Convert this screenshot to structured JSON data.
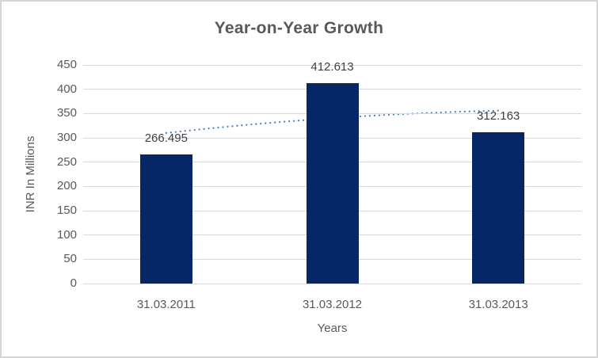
{
  "chart_data": {
    "type": "bar",
    "title": "Year-on-Year Growth",
    "xlabel": "Years",
    "ylabel": "INR In Millions",
    "categories": [
      "31.03.2011",
      "31.03.2012",
      "31.03.2013"
    ],
    "values": [
      266.495,
      412.613,
      312.163
    ],
    "data_labels": [
      "266.495",
      "412.613",
      "312.163"
    ],
    "ylim": [
      0,
      450
    ],
    "ytick_step": 50,
    "yticks": [
      0,
      50,
      100,
      150,
      200,
      250,
      300,
      350,
      400,
      450
    ],
    "grid": true,
    "legend": "none",
    "bar_color": "#062666",
    "trendline": {
      "type": "logarithmic",
      "style": "dotted",
      "color": "#4a7ec9",
      "fit_values": [
        310,
        340.5,
        356
      ]
    },
    "colors": {
      "background": "#ffffff",
      "border": "#d6d6d6",
      "gridline": "#d9d9d9",
      "title_text": "#595959",
      "axis_text": "#595959",
      "data_label_text": "#404040"
    }
  }
}
